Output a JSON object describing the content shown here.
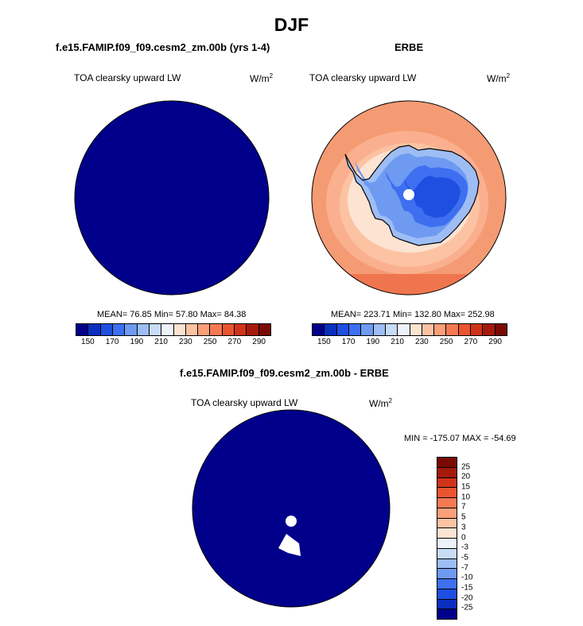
{
  "main_title": "DJF",
  "panels": [
    {
      "title": "f.e15.FAMIP.f09_f09.cesm2_zm.00b (yrs 1-4)",
      "variable": "TOA clearsky upward LW",
      "units": "W/m",
      "units_exp": "2",
      "stats": "MEAN=  76.85  Min=  57.80  Max=  84.38",
      "fill_color": "#00008b"
    },
    {
      "title": "ERBE",
      "variable": "TOA clearsky upward LW",
      "units": "W/m",
      "units_exp": "2",
      "stats": "MEAN= 223.71  Min= 132.80  Max= 252.98"
    },
    {
      "title": "f.e15.FAMIP.f09_f09.cesm2_zm.00b - ERBE",
      "variable": "TOA clearsky upward LW",
      "units": "W/m",
      "units_exp": "2",
      "stats": "MIN = -175.07 MAX = -54.69",
      "fill_color": "#00008b"
    }
  ],
  "abs_colorbar": {
    "colors": [
      "#00008b",
      "#0a2fbf",
      "#1f4fe0",
      "#3d6ff0",
      "#6e9af2",
      "#9dbdf4",
      "#c7dcf7",
      "#eef3fb",
      "#fde3d2",
      "#fcc3a3",
      "#fa9f78",
      "#f57a52",
      "#ea5530",
      "#cf3419",
      "#a51a0b",
      "#7a0a03"
    ],
    "tick_labels": [
      "150",
      "170",
      "190",
      "210",
      "230",
      "250",
      "270",
      "290"
    ]
  },
  "diff_colorbar": {
    "colors": [
      "#7a0a03",
      "#a51a0b",
      "#cf3419",
      "#ea5530",
      "#f57a52",
      "#fa9f78",
      "#fcc3a3",
      "#fde3d2",
      "#eef3fb",
      "#c7dcf7",
      "#9dbdf4",
      "#6e9af2",
      "#3d6ff0",
      "#1f4fe0",
      "#0a2fbf",
      "#00008b"
    ],
    "tick_labels": [
      "25",
      "20",
      "15",
      "10",
      "7",
      "5",
      "3",
      "0",
      "-3",
      "-5",
      "-7",
      "-10",
      "-15",
      "-20",
      "-25"
    ]
  }
}
